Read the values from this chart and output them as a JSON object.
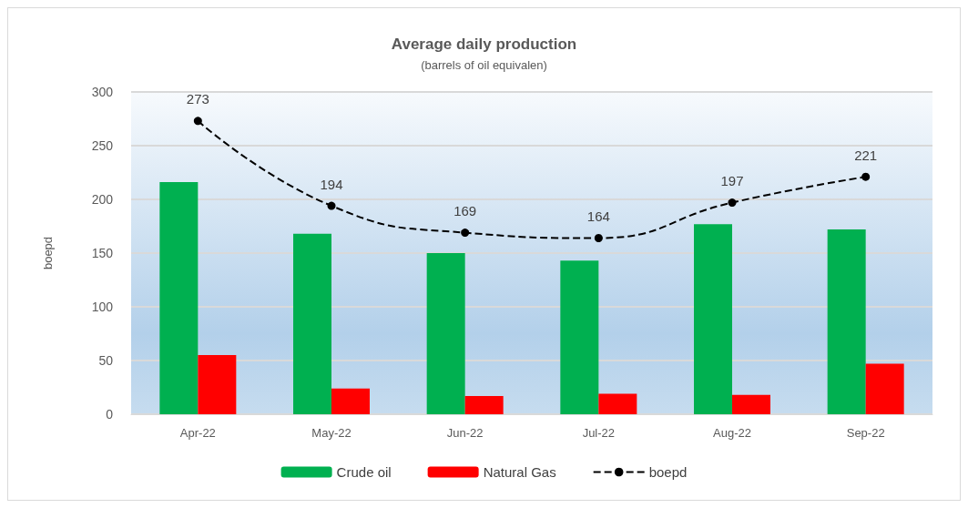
{
  "chart_data": {
    "type": "bar",
    "title": "Average daily production",
    "subtitle": "(barrels of oil equivalen)",
    "ylabel": "boepd",
    "categories": [
      "Apr-22",
      "May-22",
      "Jun-22",
      "Jul-22",
      "Aug-22",
      "Sep-22"
    ],
    "series": [
      {
        "name": "Crude oil",
        "color": "#00b050",
        "values": [
          216,
          168,
          150,
          143,
          177,
          172
        ]
      },
      {
        "name": "Natural Gas",
        "color": "#ff0000",
        "values": [
          55,
          24,
          17,
          19,
          18,
          47
        ]
      },
      {
        "name": "boepd",
        "type": "line",
        "color": "#000000",
        "line_style": "dashed",
        "marker": "circle",
        "values": [
          273,
          194,
          169,
          164,
          197,
          221
        ],
        "value_labels": [
          "273",
          "194",
          "169",
          "164",
          "197",
          "221"
        ]
      }
    ],
    "ylim": [
      0,
      300
    ],
    "yticks": [
      0,
      50,
      100,
      150,
      200,
      250,
      300
    ],
    "grid": "y",
    "legend": "bottom"
  }
}
